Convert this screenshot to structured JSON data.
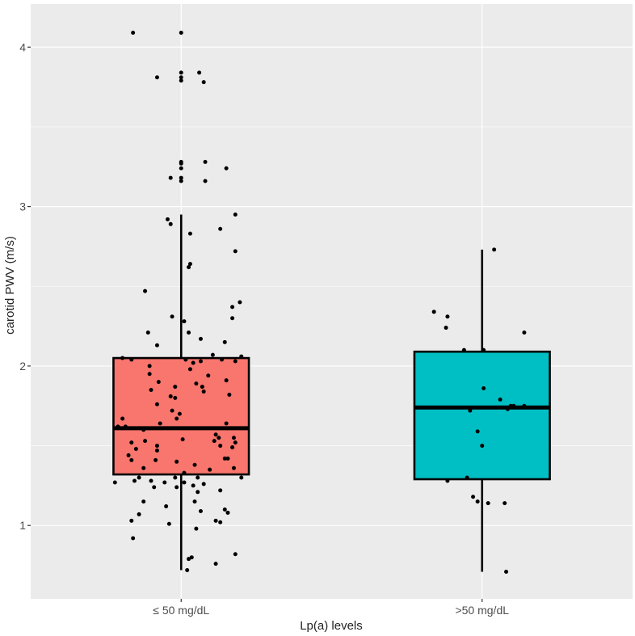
{
  "chart_data": {
    "type": "boxplot",
    "title": "",
    "xlabel": "Lp(a) levels",
    "ylabel": "carotid PWV (m/s)",
    "ylim": [
      0.54,
      4.27
    ],
    "yticks": [
      1,
      2,
      3,
      4
    ],
    "grid": true,
    "legend": "none",
    "colors": {
      "panel": "#ebebeb",
      "grid": "#ffffff",
      "point": "#000000",
      "box_line": "#000000"
    },
    "groups": [
      {
        "label": "≤ 50 mg/dL",
        "fill": "#f8766d",
        "whisker_low": 0.72,
        "q1": 1.32,
        "median": 1.61,
        "q3": 2.05,
        "whisker_high": 2.95,
        "points": [
          {
            "dx": -0.32,
            "y": 4.09
          },
          {
            "dx": 0.0,
            "y": 4.09
          },
          {
            "dx": -0.16,
            "y": 3.81
          },
          {
            "dx": 0.0,
            "y": 3.84
          },
          {
            "dx": 0.0,
            "y": 3.81
          },
          {
            "dx": 0.0,
            "y": 3.79
          },
          {
            "dx": 0.12,
            "y": 3.84
          },
          {
            "dx": 0.15,
            "y": 3.78
          },
          {
            "dx": 0.0,
            "y": 3.28
          },
          {
            "dx": 0.0,
            "y": 3.27
          },
          {
            "dx": 0.16,
            "y": 3.28
          },
          {
            "dx": 0.0,
            "y": 3.24
          },
          {
            "dx": 0.3,
            "y": 3.24
          },
          {
            "dx": -0.07,
            "y": 3.18
          },
          {
            "dx": 0.0,
            "y": 3.18
          },
          {
            "dx": 0.0,
            "y": 3.16
          },
          {
            "dx": 0.16,
            "y": 3.16
          },
          {
            "dx": -0.09,
            "y": 2.92
          },
          {
            "dx": -0.07,
            "y": 2.89
          },
          {
            "dx": 0.36,
            "y": 2.95
          },
          {
            "dx": 0.26,
            "y": 2.86
          },
          {
            "dx": 0.06,
            "y": 2.83
          },
          {
            "dx": 0.36,
            "y": 2.72
          },
          {
            "dx": 0.06,
            "y": 2.64
          },
          {
            "dx": 0.05,
            "y": 2.62
          },
          {
            "dx": -0.24,
            "y": 2.47
          },
          {
            "dx": 0.39,
            "y": 2.4
          },
          {
            "dx": 0.34,
            "y": 2.37
          },
          {
            "dx": -0.06,
            "y": 2.31
          },
          {
            "dx": 0.34,
            "y": 2.3
          },
          {
            "dx": 0.02,
            "y": 2.28
          },
          {
            "dx": -0.22,
            "y": 2.21
          },
          {
            "dx": 0.05,
            "y": 2.21
          },
          {
            "dx": 0.13,
            "y": 2.17
          },
          {
            "dx": 0.29,
            "y": 2.15
          },
          {
            "dx": -0.16,
            "y": 2.13
          },
          {
            "dx": -0.39,
            "y": 2.05
          },
          {
            "dx": -0.33,
            "y": 2.04
          },
          {
            "dx": 0.21,
            "y": 2.07
          },
          {
            "dx": 0.4,
            "y": 2.06
          },
          {
            "dx": 0.03,
            "y": 2.04
          },
          {
            "dx": 0.27,
            "y": 2.04
          },
          {
            "dx": 0.13,
            "y": 2.03
          },
          {
            "dx": -0.21,
            "y": 2.0
          },
          {
            "dx": 0.08,
            "y": 2.02
          },
          {
            "dx": 0.36,
            "y": 2.03
          },
          {
            "dx": 0.06,
            "y": 1.98
          },
          {
            "dx": -0.21,
            "y": 1.95
          },
          {
            "dx": 0.18,
            "y": 1.94
          },
          {
            "dx": 0.3,
            "y": 1.91
          },
          {
            "dx": -0.15,
            "y": 1.9
          },
          {
            "dx": 0.1,
            "y": 1.89
          },
          {
            "dx": 0.14,
            "y": 1.87
          },
          {
            "dx": -0.04,
            "y": 1.87
          },
          {
            "dx": -0.2,
            "y": 1.85
          },
          {
            "dx": 0.15,
            "y": 1.84
          },
          {
            "dx": -0.07,
            "y": 1.81
          },
          {
            "dx": 0.32,
            "y": 1.82
          },
          {
            "dx": -0.04,
            "y": 1.8
          },
          {
            "dx": -0.16,
            "y": 1.76
          },
          {
            "dx": -0.06,
            "y": 1.72
          },
          {
            "dx": -0.01,
            "y": 1.7
          },
          {
            "dx": -0.39,
            "y": 1.67
          },
          {
            "dx": -0.03,
            "y": 1.67
          },
          {
            "dx": 0.3,
            "y": 1.64
          },
          {
            "dx": -0.14,
            "y": 1.64
          },
          {
            "dx": -0.42,
            "y": 1.62
          },
          {
            "dx": -0.37,
            "y": 1.62
          },
          {
            "dx": -0.25,
            "y": 1.6
          },
          {
            "dx": 0.23,
            "y": 1.57
          },
          {
            "dx": 0.35,
            "y": 1.55
          },
          {
            "dx": 0.25,
            "y": 1.55
          },
          {
            "dx": 0.01,
            "y": 1.54
          },
          {
            "dx": -0.24,
            "y": 1.53
          },
          {
            "dx": -0.33,
            "y": 1.52
          },
          {
            "dx": 0.22,
            "y": 1.53
          },
          {
            "dx": 0.36,
            "y": 1.52
          },
          {
            "dx": 0.26,
            "y": 1.5
          },
          {
            "dx": 0.34,
            "y": 1.49
          },
          {
            "dx": -0.16,
            "y": 1.5
          },
          {
            "dx": -0.3,
            "y": 1.48
          },
          {
            "dx": -0.16,
            "y": 1.47
          },
          {
            "dx": -0.35,
            "y": 1.44
          },
          {
            "dx": -0.33,
            "y": 1.41
          },
          {
            "dx": 0.29,
            "y": 1.42
          },
          {
            "dx": 0.31,
            "y": 1.42
          },
          {
            "dx": -0.17,
            "y": 1.41
          },
          {
            "dx": -0.03,
            "y": 1.4
          },
          {
            "dx": 0.09,
            "y": 1.38
          },
          {
            "dx": -0.25,
            "y": 1.36
          },
          {
            "dx": 0.35,
            "y": 1.36
          },
          {
            "dx": 0.19,
            "y": 1.35
          },
          {
            "dx": 0.02,
            "y": 1.33
          },
          {
            "dx": -0.28,
            "y": 1.3
          },
          {
            "dx": -0.04,
            "y": 1.3
          },
          {
            "dx": 0.11,
            "y": 1.3
          },
          {
            "dx": 0.4,
            "y": 1.3
          },
          {
            "dx": -0.44,
            "y": 1.27
          },
          {
            "dx": -0.31,
            "y": 1.28
          },
          {
            "dx": -0.2,
            "y": 1.28
          },
          {
            "dx": -0.11,
            "y": 1.27
          },
          {
            "dx": 0.02,
            "y": 1.27
          },
          {
            "dx": 0.08,
            "y": 1.25
          },
          {
            "dx": -0.03,
            "y": 1.24
          },
          {
            "dx": 0.26,
            "y": 1.22
          },
          {
            "dx": 0.11,
            "y": 1.21
          },
          {
            "dx": -0.18,
            "y": 1.24
          },
          {
            "dx": 0.15,
            "y": 1.26
          },
          {
            "dx": -0.25,
            "y": 1.15
          },
          {
            "dx": 0.09,
            "y": 1.15
          },
          {
            "dx": -0.1,
            "y": 1.12
          },
          {
            "dx": 0.29,
            "y": 1.1
          },
          {
            "dx": 0.13,
            "y": 1.09
          },
          {
            "dx": 0.31,
            "y": 1.08
          },
          {
            "dx": -0.28,
            "y": 1.07
          },
          {
            "dx": 0.23,
            "y": 1.03
          },
          {
            "dx": -0.33,
            "y": 1.03
          },
          {
            "dx": 0.26,
            "y": 1.02
          },
          {
            "dx": -0.08,
            "y": 1.01
          },
          {
            "dx": 0.1,
            "y": 0.98
          },
          {
            "dx": -0.32,
            "y": 0.92
          },
          {
            "dx": 0.36,
            "y": 0.82
          },
          {
            "dx": 0.07,
            "y": 0.8
          },
          {
            "dx": 0.05,
            "y": 0.79
          },
          {
            "dx": 0.23,
            "y": 0.76
          },
          {
            "dx": 0.04,
            "y": 0.72
          }
        ]
      },
      {
        "label": ">50 mg/dL",
        "fill": "#00bfc4",
        "whisker_low": 0.71,
        "q1": 1.29,
        "median": 1.74,
        "q3": 2.09,
        "whisker_high": 2.73,
        "points": [
          {
            "dx": 0.08,
            "y": 2.73
          },
          {
            "dx": -0.32,
            "y": 2.34
          },
          {
            "dx": -0.23,
            "y": 2.31
          },
          {
            "dx": -0.24,
            "y": 2.24
          },
          {
            "dx": 0.28,
            "y": 2.21
          },
          {
            "dx": -0.12,
            "y": 2.1
          },
          {
            "dx": 0.01,
            "y": 2.1
          },
          {
            "dx": 0.01,
            "y": 1.86
          },
          {
            "dx": 0.12,
            "y": 1.79
          },
          {
            "dx": 0.19,
            "y": 1.75
          },
          {
            "dx": 0.21,
            "y": 1.75
          },
          {
            "dx": 0.28,
            "y": 1.75
          },
          {
            "dx": -0.08,
            "y": 1.72
          },
          {
            "dx": 0.17,
            "y": 1.73
          },
          {
            "dx": -0.03,
            "y": 1.59
          },
          {
            "dx": 0.0,
            "y": 1.5
          },
          {
            "dx": -0.1,
            "y": 1.3
          },
          {
            "dx": -0.23,
            "y": 1.28
          },
          {
            "dx": -0.06,
            "y": 1.18
          },
          {
            "dx": -0.03,
            "y": 1.15
          },
          {
            "dx": 0.04,
            "y": 1.14
          },
          {
            "dx": 0.15,
            "y": 1.14
          },
          {
            "dx": 0.16,
            "y": 0.71
          }
        ]
      }
    ]
  }
}
